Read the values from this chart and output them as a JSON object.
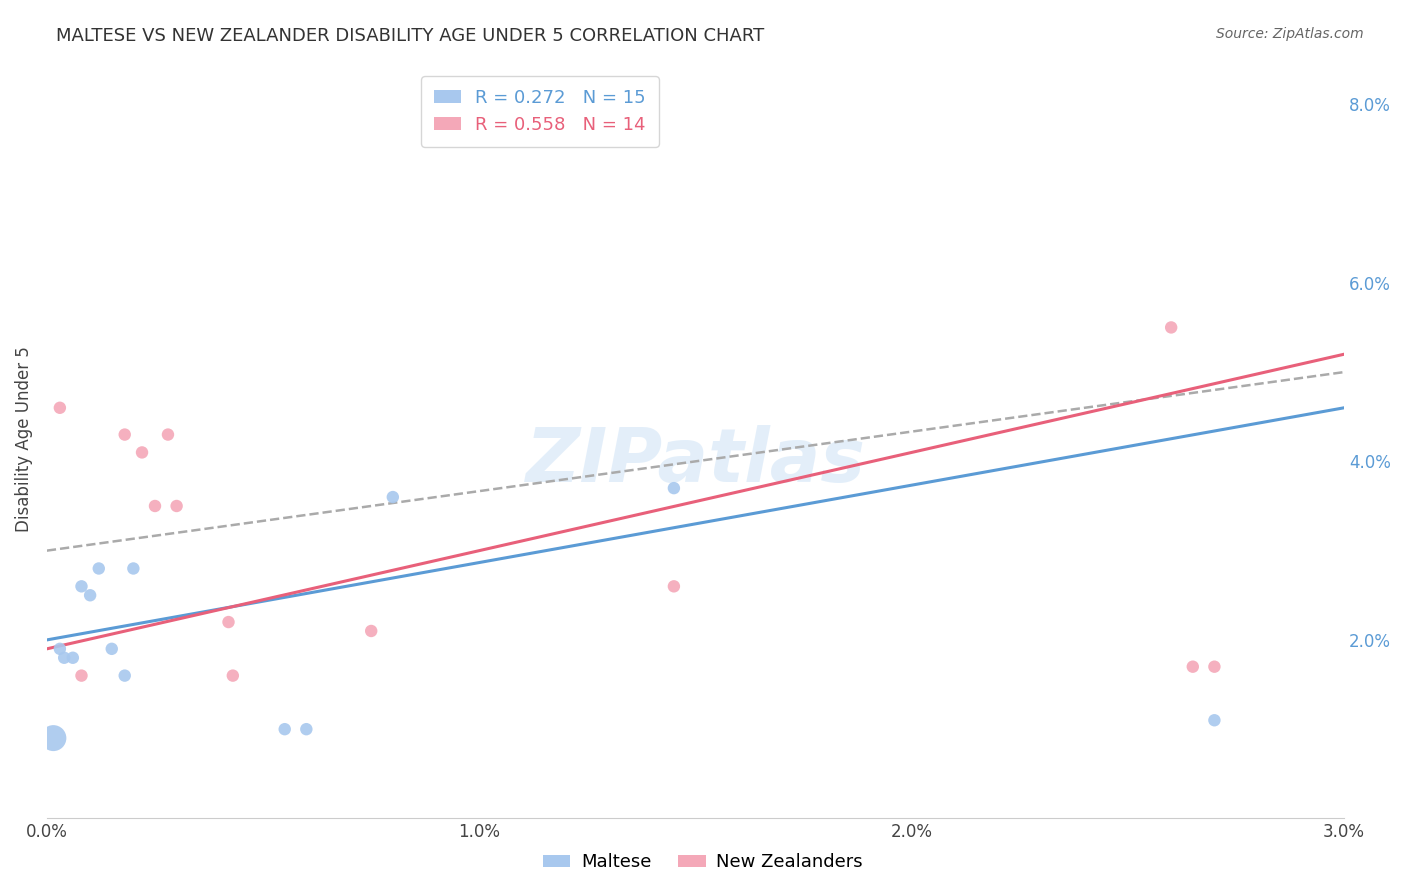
{
  "title": "MALTESE VS NEW ZEALANDER DISABILITY AGE UNDER 5 CORRELATION CHART",
  "source": "Source: ZipAtlas.com",
  "ylabel": "Disability Age Under 5",
  "xlim": [
    0.0,
    0.03
  ],
  "ylim": [
    0.0,
    0.085
  ],
  "xticks": [
    0.0,
    0.005,
    0.01,
    0.015,
    0.02,
    0.025,
    0.03
  ],
  "xticklabels": [
    "0.0%",
    "",
    "1.0%",
    "",
    "2.0%",
    "",
    "3.0%"
  ],
  "yticks_right": [
    0.0,
    0.02,
    0.04,
    0.06,
    0.08
  ],
  "yticklabels_right": [
    "",
    "2.0%",
    "4.0%",
    "6.0%",
    "8.0%"
  ],
  "maltese_R": 0.272,
  "maltese_N": 15,
  "nz_R": 0.558,
  "nz_N": 14,
  "maltese_color": "#A8C8EE",
  "maltese_line_color": "#5B9BD5",
  "nz_color": "#F4A8B8",
  "nz_line_color": "#E8607A",
  "dashed_line_color": "#AAAAAA",
  "watermark": "ZIPatlas",
  "background_color": "#FFFFFF",
  "grid_color": "#DDDDDD",
  "maltese_x": [
    0.00015,
    0.0003,
    0.0004,
    0.0006,
    0.0008,
    0.001,
    0.0012,
    0.0015,
    0.0018,
    0.002,
    0.0055,
    0.006,
    0.008,
    0.0145,
    0.027
  ],
  "maltese_y": [
    0.009,
    0.019,
    0.018,
    0.018,
    0.026,
    0.025,
    0.028,
    0.019,
    0.016,
    0.028,
    0.01,
    0.01,
    0.036,
    0.037,
    0.011
  ],
  "maltese_sizes": [
    350,
    80,
    80,
    80,
    80,
    80,
    80,
    80,
    80,
    80,
    80,
    80,
    80,
    80,
    80
  ],
  "nz_x": [
    0.0003,
    0.0008,
    0.0018,
    0.0022,
    0.0025,
    0.0028,
    0.003,
    0.0042,
    0.0043,
    0.0075,
    0.0145,
    0.026,
    0.0265,
    0.027
  ],
  "nz_y": [
    0.046,
    0.016,
    0.043,
    0.041,
    0.035,
    0.043,
    0.035,
    0.022,
    0.016,
    0.021,
    0.026,
    0.055,
    0.017,
    0.017
  ],
  "nz_sizes": [
    80,
    80,
    80,
    80,
    80,
    80,
    80,
    80,
    80,
    80,
    80,
    80,
    80,
    80
  ],
  "blue_line_x0": 0.0,
  "blue_line_y0": 0.02,
  "blue_line_x1": 0.03,
  "blue_line_y1": 0.046,
  "pink_line_x0": 0.0,
  "pink_line_y0": 0.019,
  "pink_line_x1": 0.03,
  "pink_line_y1": 0.052,
  "dashed_line_x0": 0.0,
  "dashed_line_y0": 0.03,
  "dashed_line_x1": 0.03,
  "dashed_line_y1": 0.05
}
